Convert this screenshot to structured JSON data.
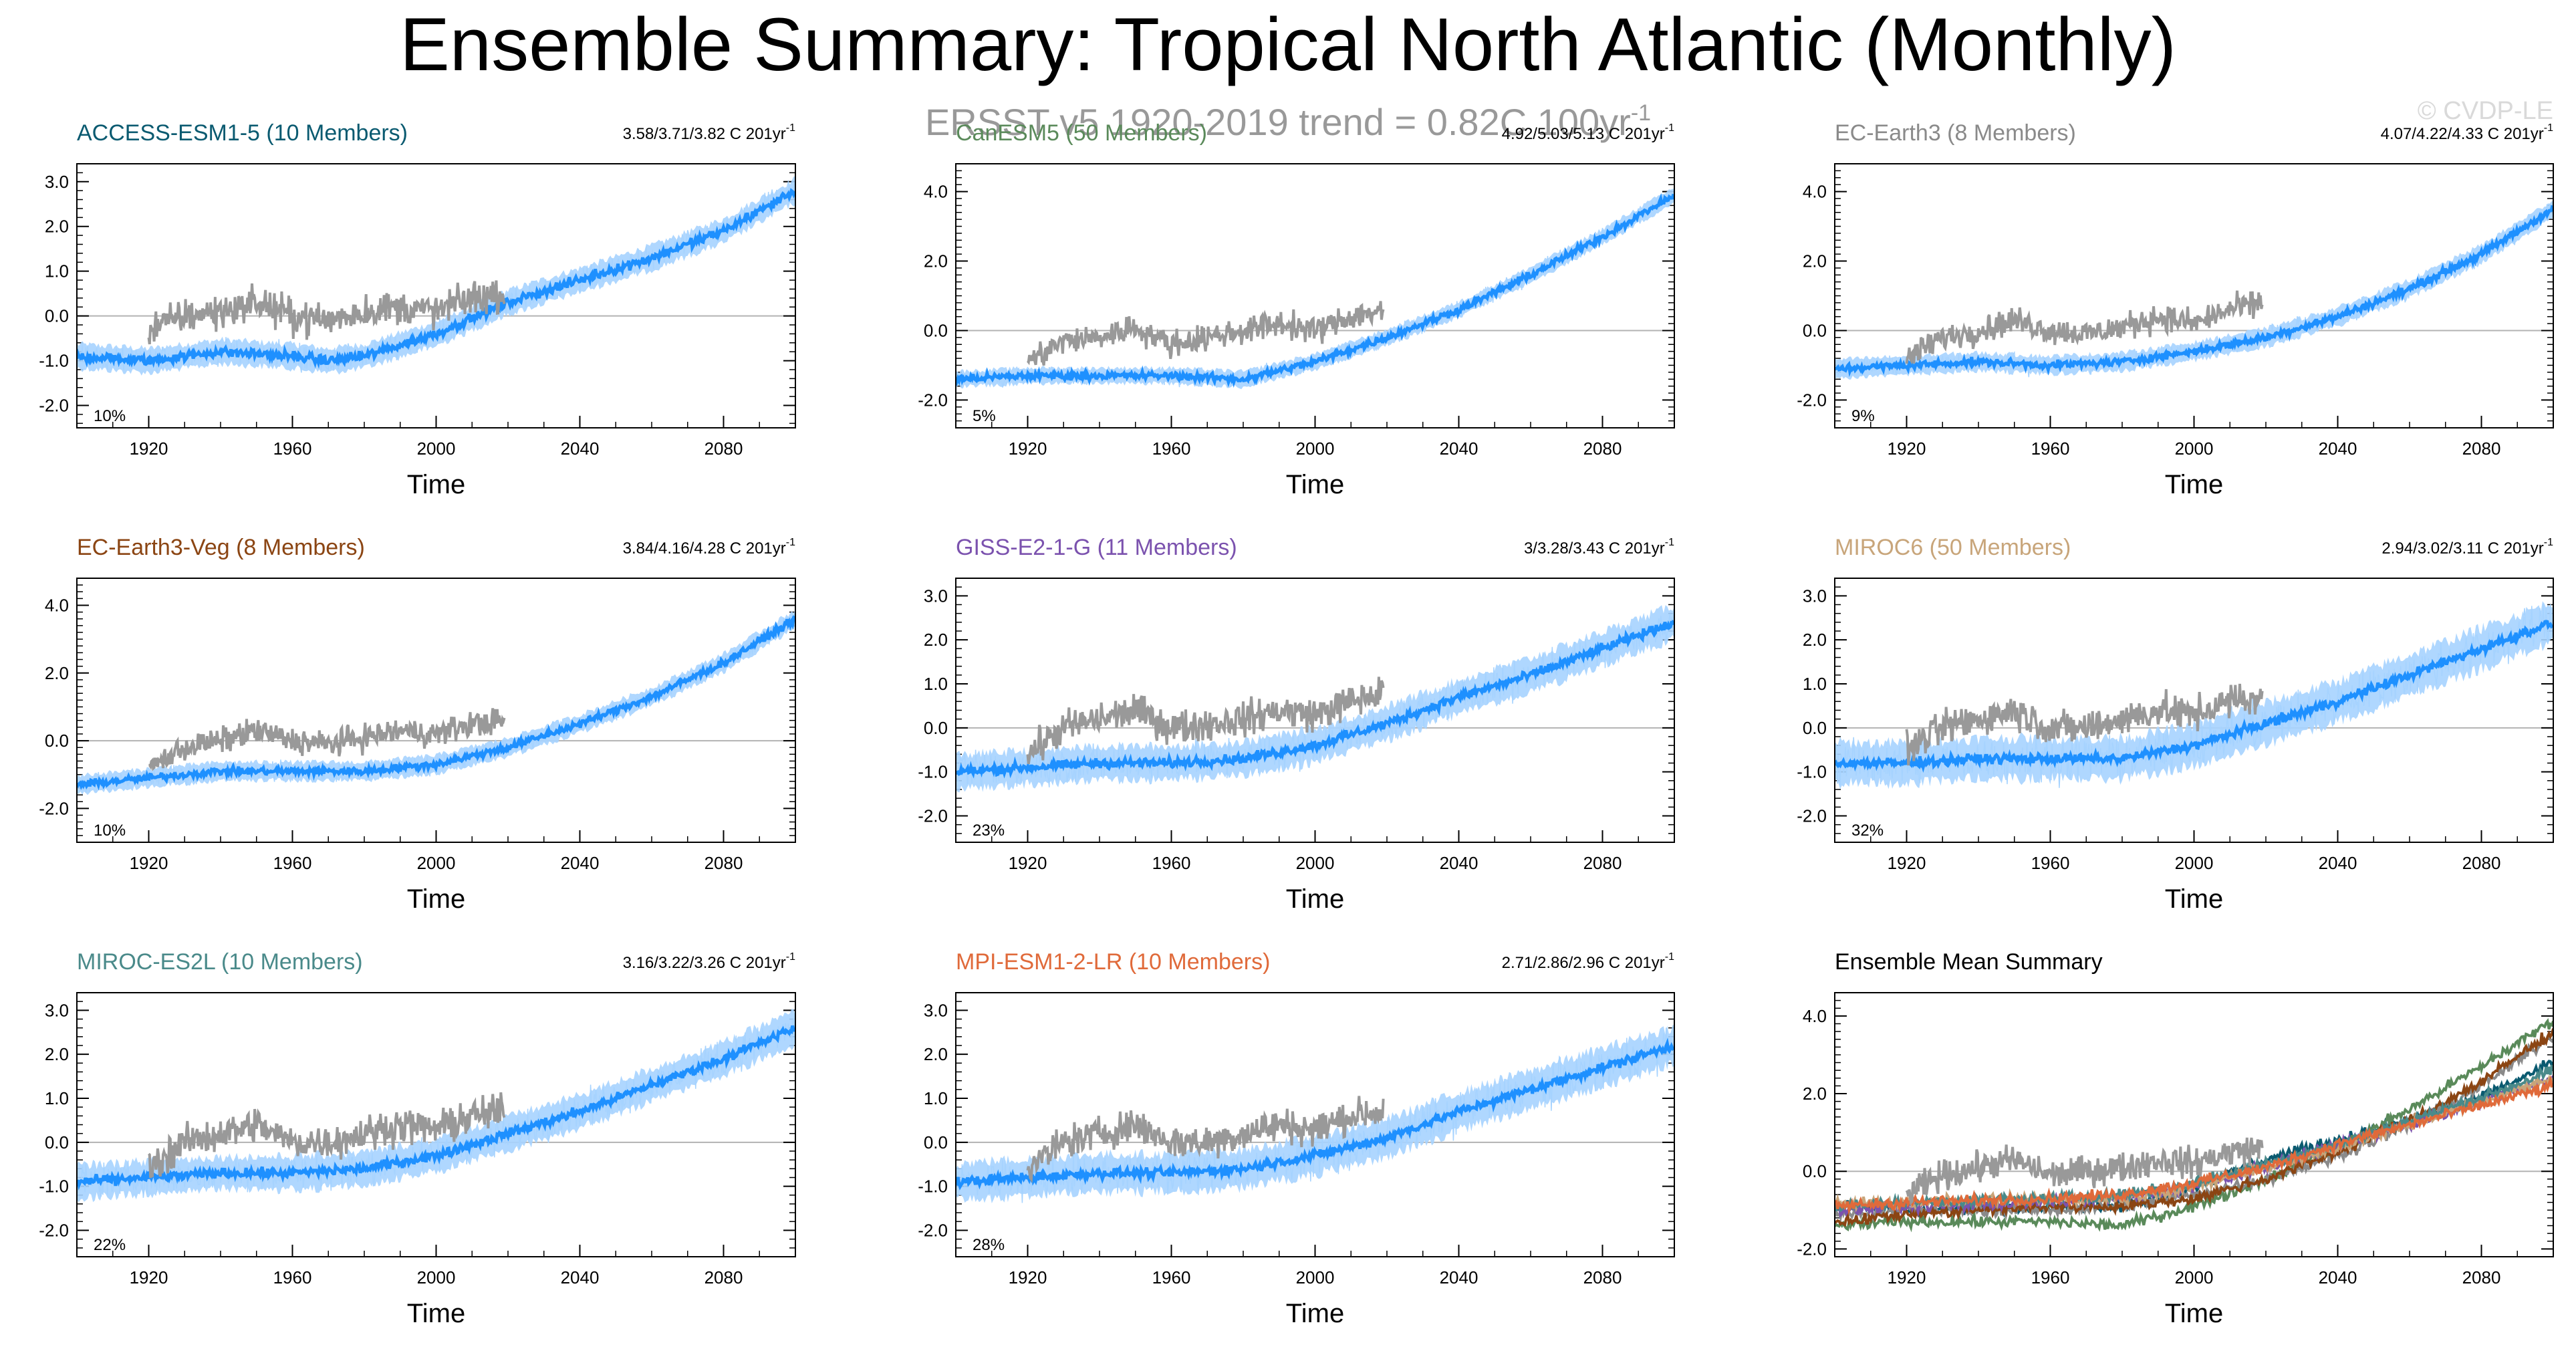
{
  "title": "Ensemble Summary: Tropical North Atlantic (Monthly)",
  "subtitle": "ERSST v5 1920-2019 trend = 0.82C 100yr",
  "subtitle_exp": "-1",
  "watermark": "© CVDP-LE",
  "xlabel": "Time",
  "colors": {
    "obs": "#999999",
    "model": "#1e90ff",
    "model_light": "#a6d3ff",
    "zero_line": "#b3b3b3"
  },
  "chart_data": [
    {
      "type": "line",
      "title": "ACCESS-ESM1-5 (10 Members)",
      "title_color": "#0a5a70",
      "trend_text": "3.58/3.71/3.82 C 201yr",
      "trend_exp": "-1",
      "pct": "10%",
      "xlabel": "Time",
      "xlim": [
        1900,
        2100
      ],
      "ylim": [
        -2.5,
        3.4
      ],
      "yticks": [
        3.0,
        2.0,
        1.0,
        0.0,
        -1.0,
        -2.0
      ],
      "ytick_labels": [
        "3.0",
        "2.0",
        "1.0",
        "0.0",
        "-1.0",
        "-2.0"
      ],
      "xticks": [
        1920,
        1960,
        2000,
        2040,
        2080
      ],
      "obs_x": [
        1920,
        1930,
        1940,
        1950,
        1960,
        1970,
        1980,
        1990,
        2000,
        2010,
        2019
      ],
      "obs_y": [
        -0.3,
        0.0,
        0.1,
        0.3,
        0.0,
        -0.1,
        0.1,
        0.2,
        0.1,
        0.4,
        0.5
      ],
      "x": [
        1900,
        1920,
        1940,
        1960,
        1970,
        1980,
        2000,
        2020,
        2040,
        2060,
        2080,
        2100
      ],
      "y": [
        -0.9,
        -1.0,
        -0.8,
        -0.9,
        -1.0,
        -0.9,
        -0.4,
        0.3,
        0.8,
        1.3,
        1.9,
        2.8
      ]
    },
    {
      "type": "line",
      "title": "CanESM5 (50 Members)",
      "title_color": "#5a8a5a",
      "trend_text": "4.92/5.03/5.13 C 201yr",
      "trend_exp": "-1",
      "pct": "5%",
      "xlabel": "Time",
      "xlim": [
        1900,
        2100
      ],
      "ylim": [
        -2.8,
        4.8
      ],
      "yticks": [
        4.0,
        2.0,
        0.0,
        -2.0
      ],
      "ytick_labels": [
        "4.0",
        "2.0",
        "0.0",
        "-2.0"
      ],
      "xticks": [
        1920,
        1960,
        2000,
        2040,
        2080
      ],
      "obs_x": [
        1920,
        1930,
        1940,
        1950,
        1960,
        1970,
        1980,
        1990,
        2000,
        2010,
        2019
      ],
      "obs_y": [
        -0.9,
        -0.3,
        -0.2,
        0.1,
        -0.4,
        -0.2,
        0.0,
        0.2,
        0.0,
        0.4,
        0.6
      ],
      "x": [
        1900,
        1920,
        1940,
        1960,
        1980,
        2000,
        2020,
        2040,
        2060,
        2080,
        2100
      ],
      "y": [
        -1.4,
        -1.3,
        -1.3,
        -1.3,
        -1.4,
        -0.9,
        -0.2,
        0.6,
        1.6,
        2.7,
        3.9
      ]
    },
    {
      "type": "line",
      "title": "EC-Earth3 (8 Members)",
      "title_color": "#8a8a8a",
      "trend_text": "4.07/4.22/4.33 C 201yr",
      "trend_exp": "-1",
      "pct": "9%",
      "xlabel": "Time",
      "xlim": [
        1900,
        2100
      ],
      "ylim": [
        -2.8,
        4.8
      ],
      "yticks": [
        4.0,
        2.0,
        0.0,
        -2.0
      ],
      "ytick_labels": [
        "4.0",
        "2.0",
        "0.0",
        "-2.0"
      ],
      "xticks": [
        1920,
        1960,
        2000,
        2040,
        2080
      ],
      "obs_x": [
        1920,
        1930,
        1940,
        1950,
        1960,
        1970,
        1980,
        1990,
        2000,
        2010,
        2019
      ],
      "obs_y": [
        -0.8,
        -0.2,
        0.0,
        0.3,
        0.0,
        -0.1,
        0.1,
        0.4,
        0.2,
        0.6,
        0.8
      ],
      "x": [
        1900,
        1920,
        1940,
        1960,
        1980,
        2000,
        2020,
        2040,
        2060,
        2080,
        2100
      ],
      "y": [
        -1.1,
        -1.0,
        -0.9,
        -1.0,
        -0.9,
        -0.6,
        -0.2,
        0.4,
        1.2,
        2.2,
        3.5
      ]
    },
    {
      "type": "line",
      "title": "EC-Earth3-Veg (8 Members)",
      "title_color": "#8b4513",
      "trend_text": "3.84/4.16/4.28 C 201yr",
      "trend_exp": "-1",
      "pct": "10%",
      "xlabel": "Time",
      "xlim": [
        1900,
        2100
      ],
      "ylim": [
        -3.0,
        4.8
      ],
      "yticks": [
        4.0,
        2.0,
        0.0,
        -2.0
      ],
      "ytick_labels": [
        "4.0",
        "2.0",
        "0.0",
        "-2.0"
      ],
      "xticks": [
        1920,
        1960,
        2000,
        2040,
        2080
      ],
      "obs_x": [
        1920,
        1930,
        1940,
        1950,
        1960,
        1970,
        1980,
        1990,
        2000,
        2010,
        2019
      ],
      "obs_y": [
        -0.8,
        -0.2,
        0.0,
        0.3,
        0.0,
        -0.1,
        0.1,
        0.3,
        0.2,
        0.5,
        0.6
      ],
      "x": [
        1900,
        1920,
        1940,
        1960,
        1980,
        2000,
        2020,
        2040,
        2060,
        2080,
        2100
      ],
      "y": [
        -1.3,
        -1.1,
        -0.9,
        -0.9,
        -0.9,
        -0.7,
        -0.2,
        0.5,
        1.3,
        2.3,
        3.6
      ]
    },
    {
      "type": "line",
      "title": "GISS-E2-1-G (11 Members)",
      "title_color": "#7b52ae",
      "trend_text": "3/3.28/3.43 C 201yr",
      "trend_exp": "-1",
      "pct": "23%",
      "xlabel": "Time",
      "xlim": [
        1900,
        2100
      ],
      "ylim": [
        -2.6,
        3.4
      ],
      "yticks": [
        3.0,
        2.0,
        1.0,
        0.0,
        -1.0,
        -2.0
      ],
      "ytick_labels": [
        "3.0",
        "2.0",
        "1.0",
        "0.0",
        "-1.0",
        "-2.0"
      ],
      "xticks": [
        1920,
        1960,
        2000,
        2040,
        2080
      ],
      "obs_x": [
        1920,
        1930,
        1940,
        1950,
        1960,
        1970,
        1980,
        1990,
        2000,
        2010,
        2019
      ],
      "obs_y": [
        -0.6,
        0.0,
        0.2,
        0.4,
        0.0,
        0.1,
        0.2,
        0.4,
        0.3,
        0.6,
        0.8
      ],
      "x": [
        1900,
        1920,
        1940,
        1960,
        1980,
        2000,
        2020,
        2040,
        2060,
        2080,
        2100
      ],
      "y": [
        -1.0,
        -0.9,
        -0.8,
        -0.8,
        -0.7,
        -0.4,
        0.1,
        0.7,
        1.2,
        1.8,
        2.4
      ]
    },
    {
      "type": "line",
      "title": "MIROC6 (50 Members)",
      "title_color": "#c8a57a",
      "trend_text": "2.94/3.02/3.11 C 201yr",
      "trend_exp": "-1",
      "pct": "32%",
      "xlabel": "Time",
      "xlim": [
        1900,
        2100
      ],
      "ylim": [
        -2.6,
        3.4
      ],
      "yticks": [
        3.0,
        2.0,
        1.0,
        0.0,
        -1.0,
        -2.0
      ],
      "ytick_labels": [
        "3.0",
        "2.0",
        "1.0",
        "0.0",
        "-1.0",
        "-2.0"
      ],
      "xticks": [
        1920,
        1960,
        2000,
        2040,
        2080
      ],
      "obs_x": [
        1920,
        1930,
        1940,
        1950,
        1960,
        1970,
        1980,
        1990,
        2000,
        2010,
        2019
      ],
      "obs_y": [
        -0.5,
        0.0,
        0.2,
        0.4,
        0.0,
        0.0,
        0.2,
        0.4,
        0.3,
        0.6,
        0.7
      ],
      "x": [
        1900,
        1920,
        1940,
        1960,
        1980,
        2000,
        2020,
        2040,
        2060,
        2080,
        2100
      ],
      "y": [
        -0.8,
        -0.8,
        -0.7,
        -0.7,
        -0.7,
        -0.4,
        0.1,
        0.6,
        1.2,
        1.8,
        2.4
      ]
    },
    {
      "type": "line",
      "title": "MIROC-ES2L (10 Members)",
      "title_color": "#4a8a8a",
      "trend_text": "3.16/3.22/3.26 C 201yr",
      "trend_exp": "-1",
      "pct": "22%",
      "xlabel": "Time",
      "xlim": [
        1900,
        2100
      ],
      "ylim": [
        -2.6,
        3.4
      ],
      "yticks": [
        3.0,
        2.0,
        1.0,
        0.0,
        -1.0,
        -2.0
      ],
      "ytick_labels": [
        "3.0",
        "2.0",
        "1.0",
        "0.0",
        "-1.0",
        "-2.0"
      ],
      "xticks": [
        1920,
        1960,
        2000,
        2040,
        2080
      ],
      "obs_x": [
        1920,
        1930,
        1940,
        1950,
        1960,
        1970,
        1980,
        1990,
        2000,
        2010,
        2019
      ],
      "obs_y": [
        -0.6,
        0.0,
        0.2,
        0.4,
        0.0,
        0.0,
        0.2,
        0.4,
        0.3,
        0.6,
        0.7
      ],
      "x": [
        1900,
        1920,
        1940,
        1960,
        1980,
        2000,
        2020,
        2040,
        2060,
        2080,
        2100
      ],
      "y": [
        -0.9,
        -0.8,
        -0.7,
        -0.7,
        -0.6,
        -0.3,
        0.2,
        0.7,
        1.3,
        1.9,
        2.6
      ]
    },
    {
      "type": "line",
      "title": "MPI-ESM1-2-LR (10 Members)",
      "title_color": "#e06a3a",
      "trend_text": "2.71/2.86/2.96 C 201yr",
      "trend_exp": "-1",
      "pct": "28%",
      "xlabel": "Time",
      "xlim": [
        1900,
        2100
      ],
      "ylim": [
        -2.6,
        3.4
      ],
      "yticks": [
        3.0,
        2.0,
        1.0,
        0.0,
        -1.0,
        -2.0
      ],
      "ytick_labels": [
        "3.0",
        "2.0",
        "1.0",
        "0.0",
        "-1.0",
        "-2.0"
      ],
      "xticks": [
        1920,
        1960,
        2000,
        2040,
        2080
      ],
      "obs_x": [
        1920,
        1930,
        1940,
        1950,
        1960,
        1970,
        1980,
        1990,
        2000,
        2010,
        2019
      ],
      "obs_y": [
        -0.6,
        0.0,
        0.2,
        0.4,
        0.0,
        0.0,
        0.2,
        0.4,
        0.3,
        0.6,
        0.7
      ],
      "x": [
        1900,
        1920,
        1940,
        1960,
        1980,
        2000,
        2020,
        2040,
        2060,
        2080,
        2100
      ],
      "y": [
        -0.9,
        -0.8,
        -0.7,
        -0.7,
        -0.6,
        -0.3,
        0.1,
        0.7,
        1.2,
        1.7,
        2.2
      ]
    },
    {
      "type": "line",
      "title": "Ensemble Mean Summary",
      "title_color": "#000000",
      "trend_text": "",
      "trend_exp": "",
      "pct": "",
      "xlabel": "Time",
      "xlim": [
        1900,
        2100
      ],
      "ylim": [
        -2.2,
        4.6
      ],
      "yticks": [
        4.0,
        2.0,
        0.0,
        -2.0
      ],
      "ytick_labels": [
        "4.0",
        "2.0",
        "0.0",
        "-2.0"
      ],
      "xticks": [
        1920,
        1960,
        2000,
        2040,
        2080
      ],
      "obs_x": [
        1920,
        1930,
        1940,
        1950,
        1960,
        1970,
        1980,
        1990,
        2000,
        2010,
        2019
      ],
      "obs_y": [
        -0.6,
        -0.1,
        0.1,
        0.3,
        -0.1,
        0.0,
        0.1,
        0.3,
        0.2,
        0.5,
        0.6
      ],
      "series": [
        {
          "name": "ACCESS-ESM1-5",
          "color": "#0a5a70",
          "x": [
            1900,
            1920,
            1960,
            1980,
            2000,
            2020,
            2040,
            2060,
            2080,
            2100
          ],
          "y": [
            -0.9,
            -1.0,
            -0.9,
            -0.9,
            -0.4,
            0.3,
            0.8,
            1.3,
            1.9,
            2.8
          ]
        },
        {
          "name": "CanESM5",
          "color": "#5a8a5a",
          "x": [
            1900,
            1920,
            1960,
            1980,
            2000,
            2020,
            2040,
            2060,
            2080,
            2100
          ],
          "y": [
            -1.4,
            -1.3,
            -1.3,
            -1.4,
            -0.9,
            -0.2,
            0.6,
            1.6,
            2.7,
            3.9
          ]
        },
        {
          "name": "EC-Earth3",
          "color": "#8a8a8a",
          "x": [
            1900,
            1920,
            1960,
            1980,
            2000,
            2020,
            2040,
            2060,
            2080,
            2100
          ],
          "y": [
            -1.1,
            -1.0,
            -1.0,
            -0.9,
            -0.6,
            -0.2,
            0.4,
            1.2,
            2.2,
            3.5
          ]
        },
        {
          "name": "EC-Earth3-Veg",
          "color": "#8b4513",
          "x": [
            1900,
            1920,
            1960,
            1980,
            2000,
            2020,
            2040,
            2060,
            2080,
            2100
          ],
          "y": [
            -1.3,
            -1.1,
            -0.9,
            -0.9,
            -0.7,
            -0.2,
            0.5,
            1.3,
            2.3,
            3.6
          ]
        },
        {
          "name": "GISS-E2-1-G",
          "color": "#7b52ae",
          "x": [
            1900,
            1920,
            1960,
            1980,
            2000,
            2020,
            2040,
            2060,
            2080,
            2100
          ],
          "y": [
            -1.0,
            -0.9,
            -0.8,
            -0.7,
            -0.4,
            0.1,
            0.7,
            1.2,
            1.8,
            2.4
          ]
        },
        {
          "name": "MIROC6",
          "color": "#c8a57a",
          "x": [
            1900,
            1920,
            1960,
            1980,
            2000,
            2020,
            2040,
            2060,
            2080,
            2100
          ],
          "y": [
            -0.8,
            -0.8,
            -0.7,
            -0.7,
            -0.4,
            0.1,
            0.6,
            1.2,
            1.8,
            2.4
          ]
        },
        {
          "name": "MIROC-ES2L",
          "color": "#4a8a8a",
          "x": [
            1900,
            1920,
            1960,
            1980,
            2000,
            2020,
            2040,
            2060,
            2080,
            2100
          ],
          "y": [
            -0.9,
            -0.8,
            -0.7,
            -0.6,
            -0.3,
            0.2,
            0.7,
            1.3,
            1.9,
            2.6
          ]
        },
        {
          "name": "MPI-ESM1-2-LR",
          "color": "#e06a3a",
          "x": [
            1900,
            1920,
            1960,
            1980,
            2000,
            2020,
            2040,
            2060,
            2080,
            2100
          ],
          "y": [
            -0.9,
            -0.8,
            -0.7,
            -0.6,
            -0.3,
            0.1,
            0.7,
            1.2,
            1.7,
            2.2
          ]
        }
      ]
    }
  ]
}
